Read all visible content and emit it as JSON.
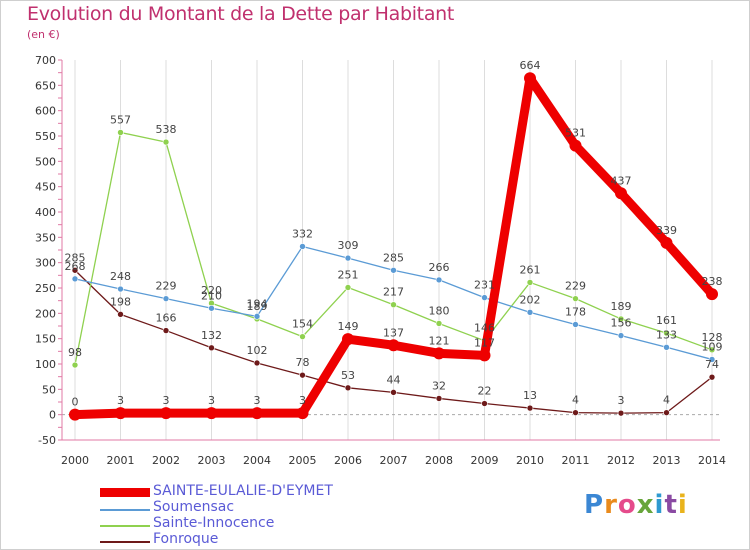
{
  "chart_data": {
    "type": "line",
    "title": "Evolution du Montant de la Dette par Habitant",
    "ylabel": "(en €)",
    "xlabel": "",
    "categories": [
      "2000",
      "2001",
      "2002",
      "2003",
      "2004",
      "2005",
      "2006",
      "2007",
      "2008",
      "2009",
      "2010",
      "2011",
      "2012",
      "2013",
      "2014"
    ],
    "ylim": [
      -50,
      700
    ],
    "yticks": [
      "-50",
      "0",
      "50",
      "100",
      "150",
      "200",
      "250",
      "300",
      "350",
      "400",
      "450",
      "500",
      "550",
      "600",
      "650",
      "700"
    ],
    "grid": "vertical",
    "legend": "bottom-left",
    "series": [
      {
        "name": "SAINTE-EULALIE-D'EYMET",
        "color": "#ee0000",
        "emphasis": "thick",
        "values": [
          0,
          3,
          3,
          3,
          3,
          3,
          149,
          137,
          121,
          117,
          664,
          531,
          437,
          339,
          238
        ]
      },
      {
        "name": "Soumensac",
        "color": "#5b9bd5",
        "emphasis": "thin",
        "values": [
          268,
          248,
          229,
          210,
          194,
          332,
          309,
          285,
          266,
          231,
          202,
          178,
          156,
          133,
          109
        ]
      },
      {
        "name": "Sainte-Innocence",
        "color": "#8fd14f",
        "emphasis": "thin",
        "values": [
          98,
          557,
          538,
          220,
          189,
          154,
          251,
          217,
          180,
          146,
          261,
          229,
          189,
          161,
          128
        ]
      },
      {
        "name": "Fonroque",
        "color": "#6e1a1a",
        "emphasis": "thin",
        "values": [
          285,
          198,
          166,
          132,
          102,
          78,
          53,
          44,
          32,
          22,
          13,
          4,
          3,
          4,
          74
        ]
      }
    ],
    "data_labels": [
      [
        "0",
        "3",
        "3",
        "3",
        "3",
        "3",
        "149",
        "137",
        "121",
        "117",
        "664",
        "531",
        "437",
        "339",
        "238"
      ],
      [
        "268",
        "248",
        "229",
        "210",
        "194",
        "332",
        "309",
        "285",
        "266",
        "231",
        "202",
        "178",
        "156",
        "133",
        "109"
      ],
      [
        "98",
        "557",
        "538",
        "220",
        "189",
        "154",
        "251",
        "217",
        "180",
        "146",
        "261",
        "229",
        "189",
        "161",
        "128"
      ],
      [
        "285",
        "198",
        "166",
        "132",
        "102",
        "78",
        "53",
        "44",
        "32",
        "22",
        "13",
        "4",
        "3",
        "4",
        "74"
      ]
    ]
  },
  "legend": {
    "items": [
      {
        "label": "SAINTE-EULALIE-D'EYMET",
        "color": "#ee0000",
        "thick": true
      },
      {
        "label": "Soumensac",
        "color": "#5b9bd5",
        "thick": false
      },
      {
        "label": "Sainte-Innocence",
        "color": "#8fd14f",
        "thick": false
      },
      {
        "label": "Fonroque",
        "color": "#6e1a1a",
        "thick": false
      }
    ]
  },
  "logo": {
    "text": "Proxiti",
    "letter_colors": [
      "#3b87d4",
      "#e98a1c",
      "#e54b8b",
      "#67a53a",
      "#2e9ad0",
      "#8a4aa3",
      "#e9b31c"
    ]
  }
}
